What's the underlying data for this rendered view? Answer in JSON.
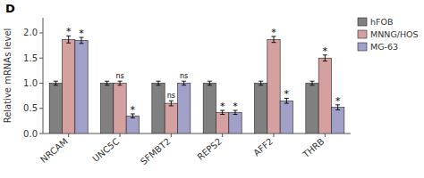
{
  "chart_data": {
    "type": "bar",
    "title": "D",
    "ylabel": "Relative mRNAs level",
    "categories": [
      "NRCAM",
      "UNC5C",
      "SFMBT2",
      "REPS2",
      "AFF2",
      "THRB"
    ],
    "series": [
      {
        "name": "hFOB",
        "color": "#808080",
        "values": [
          1.0,
          1.0,
          1.0,
          1.0,
          1.0,
          1.0
        ],
        "errors": [
          0.04,
          0.04,
          0.04,
          0.04,
          0.04,
          0.04
        ]
      },
      {
        "name": "MNNG/HOS",
        "color": "#d4a0a0",
        "values": [
          1.87,
          1.0,
          0.6,
          0.42,
          1.87,
          1.5
        ],
        "errors": [
          0.07,
          0.04,
          0.05,
          0.04,
          0.06,
          0.06
        ],
        "annotations": [
          "*",
          "ns",
          "ns",
          "*",
          "*",
          "*"
        ]
      },
      {
        "name": "MG-63",
        "color": "#a0a0c8",
        "values": [
          1.85,
          0.35,
          1.0,
          0.42,
          0.65,
          0.52
        ],
        "errors": [
          0.06,
          0.04,
          0.04,
          0.04,
          0.05,
          0.05
        ],
        "annotations": [
          "*",
          "*",
          "ns",
          "*",
          "*",
          "*"
        ]
      }
    ],
    "ylim": [
      0,
      2.3
    ],
    "yticks": [
      {
        "value": 0.0,
        "label": "0.0"
      },
      0.5,
      {
        "value": 1.0,
        "label": "1.0"
      },
      1.5,
      {
        "value": 2.0,
        "label": "2.0"
      }
    ],
    "grid": false,
    "legend": "upper right"
  }
}
